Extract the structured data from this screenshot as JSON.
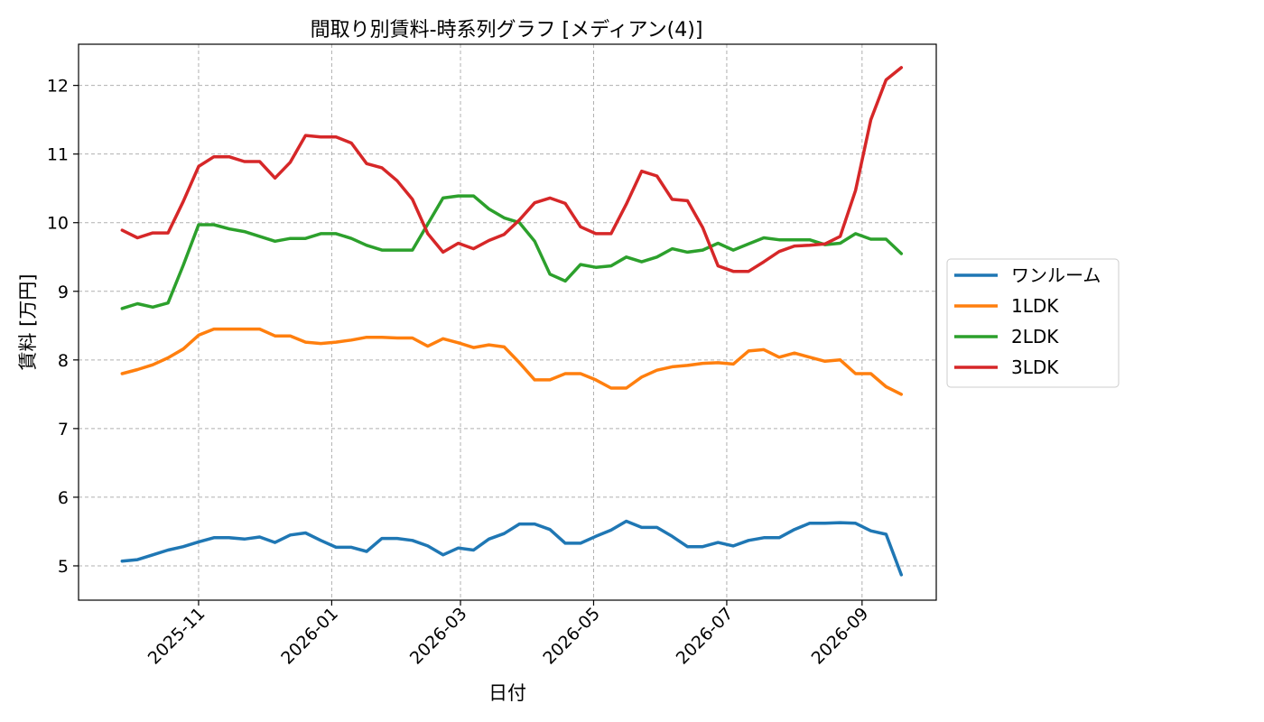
{
  "chart_data": {
    "type": "line",
    "title": "間取り別賃料-時系列グラフ [メディアン(4)]",
    "xlabel": "日付",
    "ylabel": "賃料 [万円]",
    "x_ticks": [
      "2025-11",
      "2026-01",
      "2026-03",
      "2026-05",
      "2026-07",
      "2026-09"
    ],
    "y_ticks": [
      "5",
      "6",
      "7",
      "8",
      "9",
      "10",
      "11",
      "12"
    ],
    "ylim": [
      4.5,
      12.6
    ],
    "xlim": [
      "2025-09-07",
      "2026-10-05"
    ],
    "grid": true,
    "legend_position": "right",
    "x": [
      "2025-09-27",
      "2025-10-04",
      "2025-10-11",
      "2025-10-18",
      "2025-10-25",
      "2025-11-01",
      "2025-11-08",
      "2025-11-15",
      "2025-11-22",
      "2025-11-29",
      "2025-12-06",
      "2025-12-13",
      "2025-12-20",
      "2025-12-27",
      "2026-01-03",
      "2026-01-10",
      "2026-01-17",
      "2026-01-24",
      "2026-01-31",
      "2026-02-07",
      "2026-02-14",
      "2026-02-21",
      "2026-02-28",
      "2026-03-07",
      "2026-03-14",
      "2026-03-21",
      "2026-03-28",
      "2026-04-04",
      "2026-04-11",
      "2026-04-18",
      "2026-04-25",
      "2026-05-02",
      "2026-05-09",
      "2026-05-16",
      "2026-05-23",
      "2026-05-30",
      "2026-06-06",
      "2026-06-13",
      "2026-06-20",
      "2026-06-27",
      "2026-07-04",
      "2026-07-11",
      "2026-07-18",
      "2026-07-25",
      "2026-08-01",
      "2026-08-08",
      "2026-08-15",
      "2026-08-22",
      "2026-08-29",
      "2026-09-05",
      "2026-09-12",
      "2026-09-19"
    ],
    "series": [
      {
        "name": "ワンルーム",
        "color": "#1f77b4",
        "values": [
          5.07,
          5.09,
          5.16,
          5.23,
          5.28,
          5.35,
          5.41,
          5.41,
          5.39,
          5.42,
          5.34,
          5.45,
          5.48,
          5.37,
          5.27,
          5.27,
          5.21,
          5.4,
          5.4,
          5.37,
          5.29,
          5.16,
          5.26,
          5.23,
          5.39,
          5.47,
          5.61,
          5.61,
          5.53,
          5.33,
          5.33,
          5.43,
          5.52,
          5.65,
          5.56,
          5.56,
          5.43,
          5.28,
          5.28,
          5.34,
          5.29,
          5.37,
          5.41,
          5.41,
          5.53,
          5.62,
          5.62,
          5.63,
          5.62,
          5.51,
          5.46,
          4.87
        ]
      },
      {
        "name": "1LDK",
        "color": "#ff7f0e",
        "values": [
          7.8,
          7.86,
          7.93,
          8.03,
          8.16,
          8.36,
          8.45,
          8.45,
          8.45,
          8.45,
          8.35,
          8.35,
          8.26,
          8.24,
          8.26,
          8.29,
          8.33,
          8.33,
          8.32,
          8.32,
          8.2,
          8.31,
          8.25,
          8.18,
          8.22,
          8.19,
          7.96,
          7.71,
          7.71,
          7.8,
          7.8,
          7.71,
          7.59,
          7.59,
          7.75,
          7.85,
          7.9,
          7.92,
          7.95,
          7.96,
          7.94,
          8.13,
          8.15,
          8.04,
          8.1,
          8.04,
          7.98,
          8.0,
          7.8,
          7.8,
          7.61,
          7.5
        ]
      },
      {
        "name": "2LDK",
        "color": "#2ca02c",
        "values": [
          8.75,
          8.82,
          8.77,
          8.83,
          9.38,
          9.97,
          9.97,
          9.91,
          9.87,
          9.8,
          9.73,
          9.77,
          9.77,
          9.84,
          9.84,
          9.77,
          9.67,
          9.6,
          9.6,
          9.6,
          9.98,
          10.36,
          10.39,
          10.39,
          10.2,
          10.07,
          10.0,
          9.73,
          9.25,
          9.15,
          9.39,
          9.35,
          9.37,
          9.5,
          9.43,
          9.5,
          9.62,
          9.57,
          9.6,
          9.7,
          9.6,
          9.69,
          9.78,
          9.75,
          9.75,
          9.75,
          9.68,
          9.7,
          9.84,
          9.76,
          9.76,
          9.55
        ]
      },
      {
        "name": "3LDK",
        "color": "#d62728",
        "values": [
          9.89,
          9.78,
          9.85,
          9.85,
          10.31,
          10.82,
          10.96,
          10.96,
          10.89,
          10.89,
          10.65,
          10.88,
          11.27,
          11.25,
          11.25,
          11.16,
          10.86,
          10.8,
          10.61,
          10.34,
          9.84,
          9.57,
          9.7,
          9.62,
          9.74,
          9.83,
          10.04,
          10.29,
          10.36,
          10.28,
          9.94,
          9.84,
          9.84,
          10.27,
          10.75,
          10.68,
          10.34,
          10.32,
          9.93,
          9.37,
          9.29,
          9.29,
          9.43,
          9.58,
          9.66,
          9.67,
          9.69,
          9.8,
          10.47,
          11.5,
          12.08,
          12.26
        ]
      }
    ]
  }
}
